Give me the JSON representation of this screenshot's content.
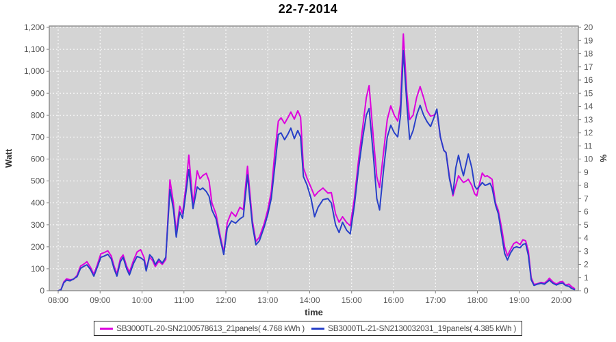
{
  "title": "22-7-2014",
  "legend": {
    "entries": [
      {
        "label": "SB3000TL-20-SN2100578613_21panels( 4.768 kWh )",
        "color": "#dd00dd"
      },
      {
        "label": "SB3000TL-21-SN2130032031_19panels( 4.385 kWh )",
        "color": "#2840c8"
      }
    ]
  },
  "colors": {
    "plot_background": "#d4d4d4",
    "gridline": "#ffffff",
    "plot_border": "#7f7f7f",
    "tick_text": "#545454",
    "axis_label_text": "#333333",
    "series1": "#dd00dd",
    "series2": "#2840c8"
  },
  "chart_data": {
    "type": "line",
    "title": "22-7-2014",
    "xlabel": "time",
    "ylabel_left": "Watt",
    "ylabel_right": "%",
    "ylim_left": [
      0,
      1200
    ],
    "ystep_left": 100,
    "ylim_right": [
      0,
      20
    ],
    "ystep_right": 1,
    "grid": true,
    "legend_position": "bottom",
    "x_ticks": [
      "08:00",
      "09:00",
      "10:00",
      "11:00",
      "12:00",
      "13:00",
      "14:00",
      "15:00",
      "16:00",
      "17:00",
      "18:00",
      "19:00",
      "20:00"
    ],
    "x": [
      "08:00",
      "08:04",
      "08:08",
      "08:12",
      "08:17",
      "08:22",
      "08:27",
      "08:32",
      "08:37",
      "08:41",
      "08:46",
      "08:51",
      "08:56",
      "09:01",
      "09:06",
      "09:11",
      "09:16",
      "09:20",
      "09:24",
      "09:29",
      "09:33",
      "09:38",
      "09:42",
      "09:48",
      "09:53",
      "09:58",
      "10:03",
      "10:06",
      "10:11",
      "10:15",
      "10:19",
      "10:24",
      "10:29",
      "10:34",
      "10:40",
      "10:45",
      "10:49",
      "10:54",
      "10:58",
      "11:03",
      "11:07",
      "11:13",
      "11:19",
      "11:23",
      "11:27",
      "11:32",
      "11:36",
      "11:40",
      "11:46",
      "11:52",
      "11:57",
      "12:02",
      "12:08",
      "12:14",
      "12:20",
      "12:25",
      "12:31",
      "12:38",
      "12:43",
      "12:48",
      "12:55",
      "13:00",
      "13:05",
      "13:10",
      "13:15",
      "13:19",
      "13:24",
      "13:29",
      "13:33",
      "13:38",
      "13:43",
      "13:47",
      "13:51",
      "13:56",
      "14:02",
      "14:07",
      "14:12",
      "14:19",
      "14:26",
      "14:31",
      "14:37",
      "14:42",
      "14:47",
      "14:53",
      "14:58",
      "15:04",
      "15:10",
      "15:16",
      "15:21",
      "15:25",
      "15:31",
      "15:36",
      "15:40",
      "15:46",
      "15:51",
      "15:56",
      "16:01",
      "16:06",
      "16:10",
      "16:14",
      "16:19",
      "16:23",
      "16:28",
      "16:33",
      "16:38",
      "16:43",
      "16:48",
      "16:53",
      "16:58",
      "17:02",
      "17:07",
      "17:12",
      "17:15",
      "17:20",
      "17:25",
      "17:29",
      "17:33",
      "17:37",
      "17:40",
      "17:44",
      "17:47",
      "17:52",
      "17:56",
      "17:59",
      "18:04",
      "18:07",
      "18:11",
      "18:14",
      "18:18",
      "18:21",
      "18:26",
      "18:30",
      "18:35",
      "18:39",
      "18:43",
      "18:47",
      "18:52",
      "18:56",
      "19:01",
      "19:05",
      "19:09",
      "19:13",
      "19:17",
      "19:21",
      "19:26",
      "19:31",
      "19:36",
      "19:40",
      "19:43",
      "19:48",
      "19:53",
      "19:58",
      "20:02",
      "20:06",
      "20:11",
      "20:15",
      "20:19"
    ],
    "series": [
      {
        "name": "SB3000TL-20-SN2100578613_21panels( 4.768 kWh )",
        "color": "#dd00dd",
        "unit": "Watt",
        "values": [
          0,
          5,
          40,
          54,
          50,
          52,
          70,
          112,
          122,
          132,
          108,
          75,
          118,
          168,
          174,
          182,
          158,
          112,
          76,
          146,
          163,
          112,
          84,
          140,
          177,
          187,
          150,
          100,
          152,
          138,
          110,
          134,
          120,
          142,
          505,
          400,
          265,
          385,
          350,
          480,
          618,
          392,
          546,
          510,
          525,
          535,
          500,
          400,
          348,
          250,
          175,
          310,
          358,
          338,
          380,
          369,
          567,
          318,
          224,
          244,
          307,
          369,
          452,
          630,
          772,
          788,
          762,
          790,
          814,
          782,
          820,
          790,
          560,
          514,
          470,
          431,
          450,
          468,
          445,
          447,
          350,
          312,
          337,
          310,
          296,
          420,
          600,
          750,
          880,
          935,
          700,
          520,
          470,
          640,
          780,
          842,
          800,
          773,
          850,
          1170,
          900,
          780,
          800,
          880,
          930,
          880,
          820,
          795,
          800,
          818,
          700,
          639,
          630,
          520,
          432,
          480,
          524,
          505,
          493,
          500,
          508,
          480,
          442,
          432,
          500,
          536,
          520,
          524,
          515,
          508,
          400,
          365,
          280,
          200,
          160,
          185,
          215,
          222,
          210,
          232,
          228,
          180,
          60,
          28,
          32,
          38,
          35,
          45,
          57,
          40,
          30,
          40,
          42,
          26,
          30,
          18,
          10
        ]
      },
      {
        "name": "SB3000TL-21-SN2130032031_19panels( 4.385 kWh )",
        "color": "#2840c8",
        "unit": "Watt",
        "values": [
          0,
          4,
          36,
          48,
          45,
          54,
          64,
          102,
          112,
          118,
          98,
          66,
          108,
          152,
          158,
          166,
          145,
          100,
          66,
          132,
          152,
          100,
          72,
          126,
          156,
          150,
          138,
          90,
          164,
          150,
          119,
          144,
          126,
          152,
          462,
          370,
          244,
          358,
          330,
          450,
          552,
          374,
          473,
          460,
          468,
          452,
          430,
          368,
          327,
          234,
          165,
          285,
          318,
          308,
          327,
          338,
          528,
          298,
          209,
          228,
          291,
          348,
          421,
          567,
          712,
          719,
          688,
          715,
          741,
          693,
          730,
          700,
          520,
          483,
          420,
          337,
          380,
          415,
          420,
          400,
          300,
          265,
          312,
          275,
          259,
          390,
          560,
          700,
          800,
          830,
          620,
          420,
          368,
          560,
          700,
          754,
          720,
          701,
          800,
          1095,
          850,
          690,
          730,
          800,
          845,
          800,
          770,
          748,
          790,
          828,
          700,
          639,
          630,
          510,
          440,
          560,
          617,
          560,
          524,
          580,
          623,
          560,
          478,
          463,
          480,
          493,
          480,
          483,
          490,
          470,
          390,
          350,
          250,
          170,
          140,
          170,
          195,
          200,
          195,
          210,
          215,
          160,
          50,
          24,
          30,
          34,
          30,
          40,
          48,
          34,
          26,
          33,
          35,
          24,
          20,
          10,
          5
        ]
      }
    ]
  }
}
